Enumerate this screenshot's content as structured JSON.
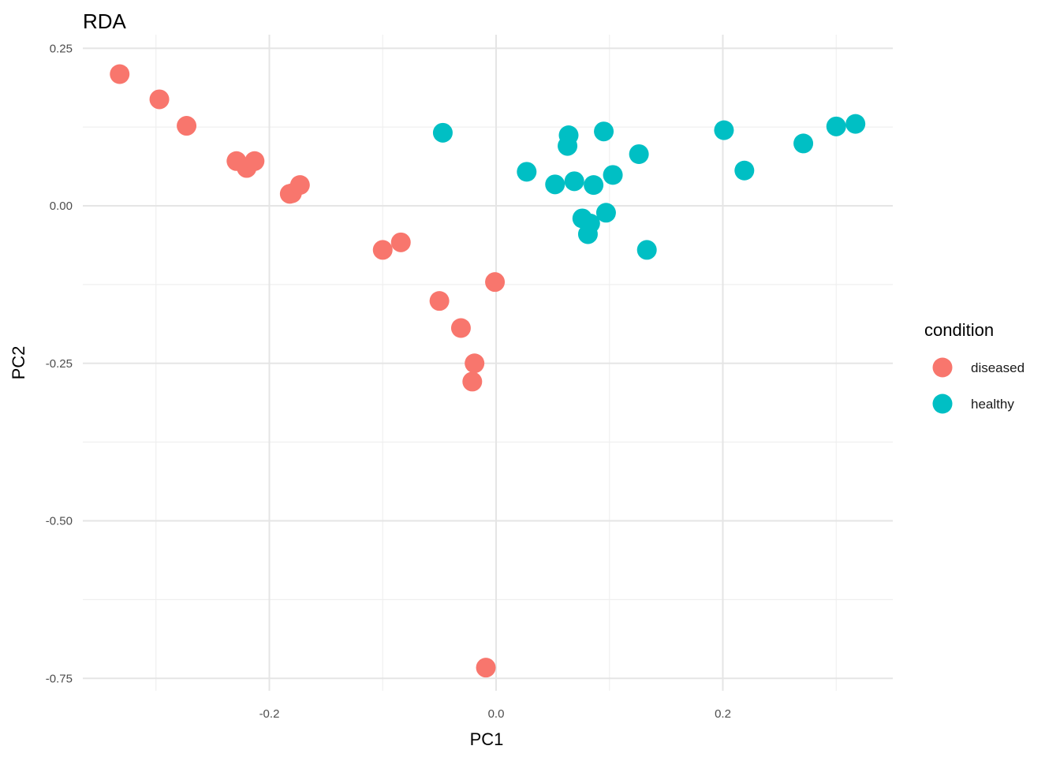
{
  "chart_data": {
    "type": "scatter",
    "title": "RDA",
    "xlabel": "PC1",
    "ylabel": "PC2",
    "xlim": [
      -0.36,
      0.35
    ],
    "ylim": [
      -0.75,
      0.25
    ],
    "x_ticks": [
      -0.2,
      0.0,
      0.2
    ],
    "x_tick_labels": [
      "-0.2",
      "0.0",
      "0.2"
    ],
    "y_ticks": [
      0.25,
      0.0,
      -0.25,
      -0.5,
      -0.75
    ],
    "y_tick_labels": [
      "0.25",
      "0.00",
      "-0.25",
      "-0.50",
      "-0.75"
    ],
    "grid": true,
    "legend": {
      "title": "condition",
      "placement": "right"
    },
    "series": [
      {
        "name": "diseased",
        "color": "#F8766D",
        "points": [
          [
            -0.332,
            0.209
          ],
          [
            -0.297,
            0.169
          ],
          [
            -0.273,
            0.127
          ],
          [
            -0.229,
            0.071
          ],
          [
            -0.22,
            0.06
          ],
          [
            -0.213,
            0.071
          ],
          [
            -0.182,
            0.019
          ],
          [
            -0.18,
            0.02
          ],
          [
            -0.173,
            0.033
          ],
          [
            -0.1,
            -0.07
          ],
          [
            -0.084,
            -0.058
          ],
          [
            -0.05,
            -0.151
          ],
          [
            -0.031,
            -0.194
          ],
          [
            -0.001,
            -0.121
          ],
          [
            -0.019,
            -0.25
          ],
          [
            -0.021,
            -0.279
          ],
          [
            -0.009,
            -0.733
          ]
        ]
      },
      {
        "name": "healthy",
        "color": "#00BFC4",
        "points": [
          [
            -0.047,
            0.116
          ],
          [
            0.027,
            0.054
          ],
          [
            0.052,
            0.034
          ],
          [
            0.064,
            0.112
          ],
          [
            0.063,
            0.095
          ],
          [
            0.069,
            0.039
          ],
          [
            0.076,
            -0.02
          ],
          [
            0.083,
            -0.028
          ],
          [
            0.081,
            -0.045
          ],
          [
            0.086,
            0.033
          ],
          [
            0.095,
            0.118
          ],
          [
            0.097,
            -0.011
          ],
          [
            0.103,
            0.049
          ],
          [
            0.126,
            0.082
          ],
          [
            0.133,
            -0.07
          ],
          [
            0.201,
            0.12
          ],
          [
            0.219,
            0.056
          ],
          [
            0.271,
            0.099
          ],
          [
            0.3,
            0.126
          ],
          [
            0.317,
            0.13
          ]
        ]
      }
    ]
  }
}
